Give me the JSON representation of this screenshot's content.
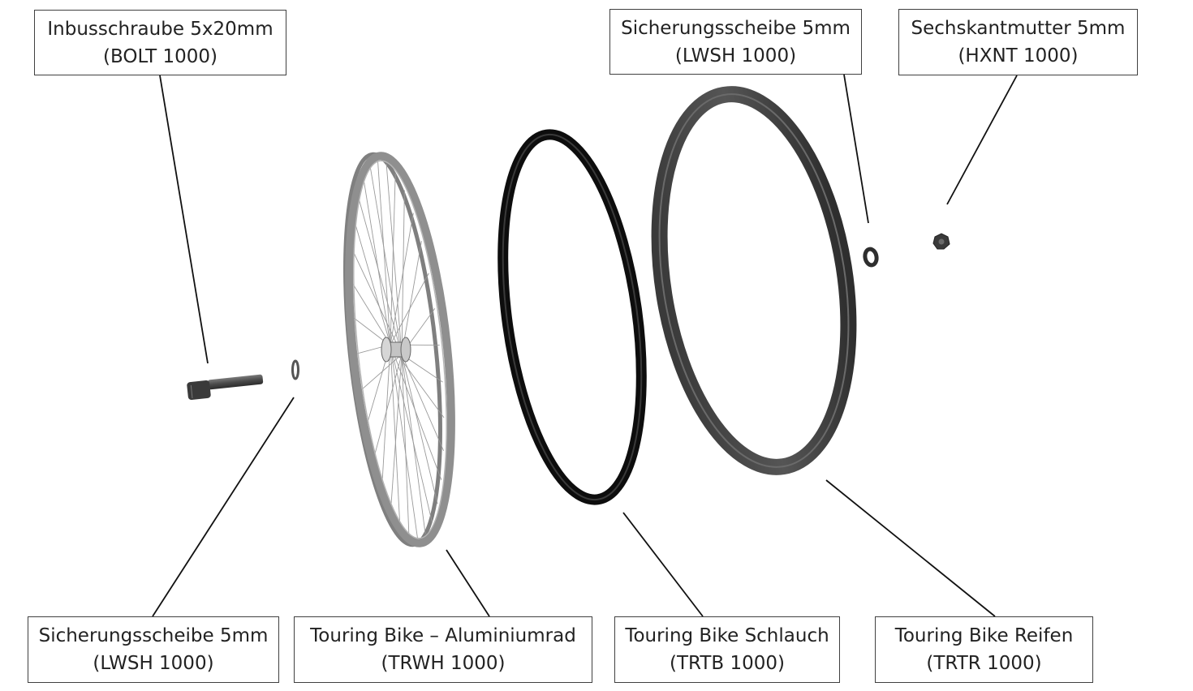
{
  "callouts": [
    {
      "id": "bolt",
      "name": "Inbusschraube 5x20mm",
      "code": "(BOLT 1000)"
    },
    {
      "id": "lwsh-top",
      "name": "Sicherungsscheibe 5mm",
      "code": "(LWSH 1000)"
    },
    {
      "id": "hxnt",
      "name": "Sechskantmutter 5mm",
      "code": "(HXNT 1000)"
    },
    {
      "id": "lwsh-bottom",
      "name": "Sicherungsscheibe 5mm",
      "code": "(LWSH 1000)"
    },
    {
      "id": "trwh",
      "name": "Touring Bike – Aluminiumrad",
      "code": "(TRWH 1000)"
    },
    {
      "id": "trtb",
      "name": "Touring Bike Schlauch",
      "code": "(TRTB 1000)"
    },
    {
      "id": "trtr",
      "name": "Touring Bike Reifen",
      "code": "(TRTR 1000)"
    }
  ],
  "colors": {
    "wheel_rim": "#8f8f8f",
    "inner_tube": "#0d0d0d",
    "tire": "#454545",
    "spokes": "#9a9a9a",
    "hardware": "#4a4a4a",
    "leader_line": "#111111",
    "box_border": "#404040"
  }
}
